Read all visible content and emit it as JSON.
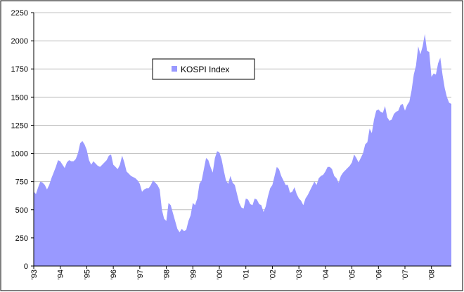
{
  "chart_data": {
    "type": "area",
    "categories": [
      "'93",
      null,
      null,
      null,
      null,
      null,
      null,
      null,
      null,
      null,
      null,
      null,
      "'94",
      null,
      null,
      null,
      null,
      null,
      null,
      null,
      null,
      null,
      null,
      null,
      "'95",
      null,
      null,
      null,
      null,
      null,
      null,
      null,
      null,
      null,
      null,
      null,
      "'96",
      null,
      null,
      null,
      null,
      null,
      null,
      null,
      null,
      null,
      null,
      null,
      "'97",
      null,
      null,
      null,
      null,
      null,
      null,
      null,
      null,
      null,
      null,
      null,
      "'98",
      null,
      null,
      null,
      null,
      null,
      null,
      null,
      null,
      null,
      null,
      null,
      "'99",
      null,
      null,
      null,
      null,
      null,
      null,
      null,
      null,
      null,
      null,
      null,
      "'00",
      null,
      null,
      null,
      null,
      null,
      null,
      null,
      null,
      null,
      null,
      null,
      "'01",
      null,
      null,
      null,
      null,
      null,
      null,
      null,
      null,
      null,
      null,
      null,
      "'02",
      null,
      null,
      null,
      null,
      null,
      null,
      null,
      null,
      null,
      null,
      null,
      "'03",
      null,
      null,
      null,
      null,
      null,
      null,
      null,
      null,
      null,
      null,
      null,
      "'04",
      null,
      null,
      null,
      null,
      null,
      null,
      null,
      null,
      null,
      null,
      null,
      "'05",
      null,
      null,
      null,
      null,
      null,
      null,
      null,
      null,
      null,
      null,
      null,
      "'06",
      null,
      null,
      null,
      null,
      null,
      null,
      null,
      null,
      null,
      null,
      null,
      "'07",
      null,
      null,
      null,
      null,
      null,
      null,
      null,
      null,
      null,
      null,
      null,
      "'08",
      null,
      null,
      null,
      null,
      null,
      null,
      null,
      null,
      null
    ],
    "series": [
      {
        "name": "KOSPI Index",
        "color": "#9999ff",
        "values": [
          660,
          640,
          700,
          750,
          740,
          720,
          680,
          720,
          780,
          830,
          880,
          940,
          930,
          900,
          870,
          920,
          940,
          930,
          930,
          950,
          1000,
          1090,
          1110,
          1080,
          1030,
          940,
          900,
          930,
          910,
          890,
          880,
          900,
          920,
          940,
          980,
          990,
          900,
          880,
          860,
          900,
          980,
          920,
          840,
          820,
          800,
          790,
          780,
          760,
          730,
          660,
          680,
          690,
          690,
          720,
          760,
          740,
          720,
          680,
          500,
          420,
          400,
          560,
          540,
          470,
          400,
          330,
          300,
          330,
          310,
          320,
          400,
          450,
          560,
          540,
          600,
          730,
          760,
          860,
          960,
          940,
          880,
          830,
          960,
          1020,
          1010,
          950,
          850,
          760,
          730,
          800,
          740,
          720,
          640,
          560,
          520,
          510,
          600,
          590,
          550,
          540,
          600,
          590,
          550,
          540,
          480,
          530,
          620,
          690,
          720,
          800,
          880,
          860,
          800,
          760,
          720,
          720,
          650,
          660,
          700,
          640,
          600,
          580,
          540,
          600,
          630,
          670,
          710,
          750,
          720,
          780,
          800,
          810,
          840,
          880,
          880,
          860,
          800,
          780,
          740,
          800,
          830,
          850,
          870,
          890,
          920,
          990,
          960,
          920,
          960,
          1000,
          1080,
          1100,
          1220,
          1180,
          1300,
          1380,
          1390,
          1370,
          1360,
          1420,
          1320,
          1290,
          1300,
          1350,
          1370,
          1380,
          1430,
          1440,
          1380,
          1430,
          1460,
          1560,
          1700,
          1780,
          1950,
          1880,
          1950,
          2060,
          1910,
          1900,
          1680,
          1710,
          1700,
          1800,
          1850,
          1700,
          1580,
          1500,
          1450,
          1440
        ]
      }
    ],
    "ylim": [
      0,
      2250
    ],
    "yticks": [
      0,
      250,
      500,
      750,
      1000,
      1250,
      1500,
      1750,
      2000,
      2250
    ],
    "grid": true
  }
}
